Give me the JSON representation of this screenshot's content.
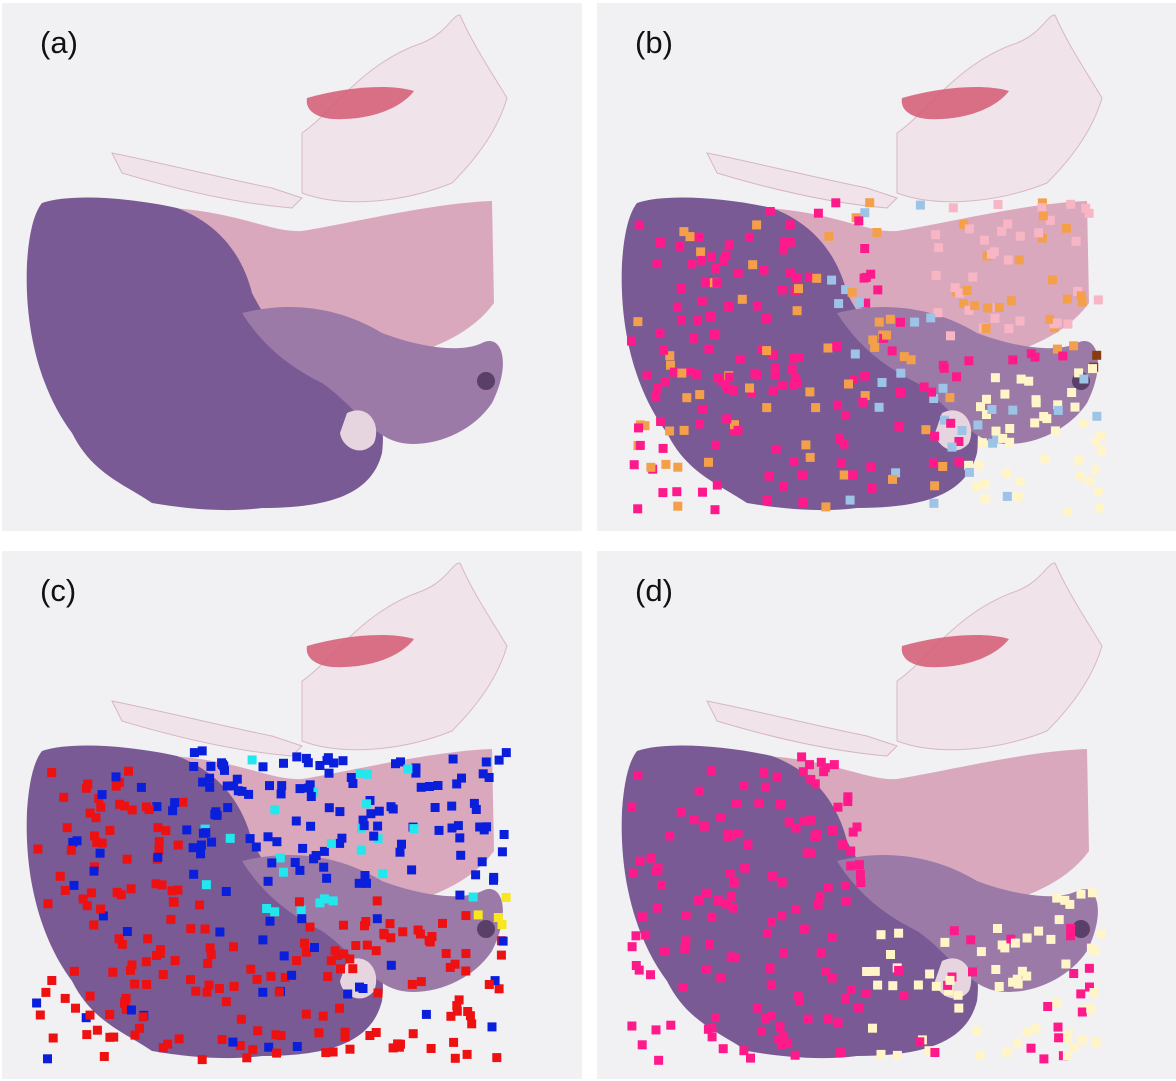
{
  "figure": {
    "panels": [
      {
        "id": "a",
        "label": "(a)",
        "overlay": "none"
      },
      {
        "id": "b",
        "label": "(b)",
        "overlay": "multi-class"
      },
      {
        "id": "c",
        "label": "(c)",
        "overlay": "three-class"
      },
      {
        "id": "d",
        "label": "(d)",
        "overlay": "two-class"
      }
    ]
  },
  "colors": {
    "background": "#f1f0f2",
    "tissue_dark_purple": "#7a5a94",
    "tissue_mid_purple": "#9b7aa8",
    "tissue_pink_muscle": "#d9a8bd",
    "tissue_light_pink": "#e9cfd9",
    "tissue_faint": "#f0e4ea",
    "blood_clot": "#d45a73",
    "marker_magenta": "#ff1a8c",
    "marker_orange": "#f4a04a",
    "marker_light_pink": "#f8b6c4",
    "marker_light_blue": "#9dc3e6",
    "marker_cream": "#fff5c8",
    "marker_brown": "#8a3a10",
    "marker_red": "#ee1111",
    "marker_blue": "#0a1fdc",
    "marker_cyan": "#22e8ee",
    "marker_yellow": "#f8e71c"
  }
}
